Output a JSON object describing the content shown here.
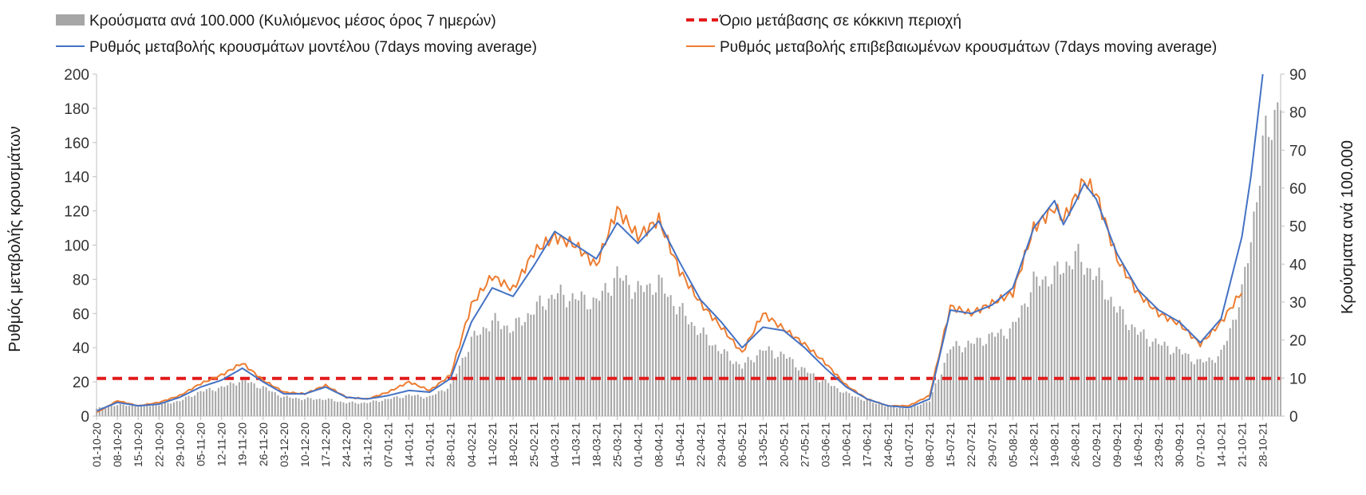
{
  "chart_data": {
    "type": "bar+line",
    "title": "",
    "ylabel": "Ρυθμός μεταβολής κρουσμάτων",
    "y2label": "Κρούσματα ανά 100.000",
    "ylim": [
      0,
      200
    ],
    "y2lim": [
      0,
      90
    ],
    "yticks": [
      0,
      20,
      40,
      60,
      80,
      100,
      120,
      140,
      160,
      180,
      200
    ],
    "y2ticks": [
      0,
      10,
      20,
      30,
      40,
      50,
      60,
      70,
      80,
      90
    ],
    "x_start": "2020-10-01",
    "x_end": "2021-11-03",
    "xtick_labels": [
      "01-10-20",
      "08-10-20",
      "15-10-20",
      "22-10-20",
      "29-10-20",
      "05-11-20",
      "12-11-20",
      "19-11-20",
      "26-11-20",
      "03-12-20",
      "10-12-20",
      "17-12-20",
      "24-12-20",
      "31-12-20",
      "07-01-21",
      "14-01-21",
      "21-01-21",
      "28-01-21",
      "04-02-21",
      "11-02-21",
      "18-02-21",
      "25-02-21",
      "04-03-21",
      "11-03-21",
      "18-03-21",
      "25-03-21",
      "01-04-21",
      "08-04-21",
      "15-04-21",
      "22-04-21",
      "29-04-21",
      "06-05-21",
      "13-05-21",
      "20-05-21",
      "27-05-21",
      "03-06-21",
      "10-06-21",
      "17-06-21",
      "24-06-21",
      "01-07-21",
      "08-07-21",
      "15-07-21",
      "22-07-21",
      "29-07-21",
      "05-08-21",
      "12-08-21",
      "19-08-21",
      "26-08-21",
      "02-09-21",
      "09-09-21",
      "16-09-21",
      "23-09-21",
      "30-09-21",
      "07-10-21",
      "14-10-21",
      "21-10-21",
      "28-10-21"
    ],
    "grid": false,
    "legend_position": "top",
    "series": [
      {
        "name": "Κρούσματα ανά 100.000 (Κυλιόμενος μέσος όρος 7 ημερών)",
        "type": "bar",
        "axis": "right",
        "color": "#a6a6a6",
        "points": [
          [
            "2020-10-01",
            2
          ],
          [
            "2020-10-08",
            3
          ],
          [
            "2020-10-15",
            2.6
          ],
          [
            "2020-10-22",
            3
          ],
          [
            "2020-10-29",
            4
          ],
          [
            "2020-11-05",
            6.5
          ],
          [
            "2020-11-12",
            7.5
          ],
          [
            "2020-11-19",
            9.5
          ],
          [
            "2020-11-26",
            7.5
          ],
          [
            "2020-12-03",
            5
          ],
          [
            "2020-12-10",
            4.5
          ],
          [
            "2020-12-17",
            4.5
          ],
          [
            "2020-12-24",
            3.5
          ],
          [
            "2020-12-31",
            3.5
          ],
          [
            "2021-01-07",
            4.5
          ],
          [
            "2021-01-14",
            5.5
          ],
          [
            "2021-01-21",
            5
          ],
          [
            "2021-01-28",
            8
          ],
          [
            "2021-02-04",
            20
          ],
          [
            "2021-02-11",
            25
          ],
          [
            "2021-02-18",
            23
          ],
          [
            "2021-02-25",
            28
          ],
          [
            "2021-03-04",
            32
          ],
          [
            "2021-03-11",
            31
          ],
          [
            "2021-03-18",
            30
          ],
          [
            "2021-03-25",
            37
          ],
          [
            "2021-04-01",
            33
          ],
          [
            "2021-04-08",
            35
          ],
          [
            "2021-04-15",
            28
          ],
          [
            "2021-04-22",
            22
          ],
          [
            "2021-04-29",
            17
          ],
          [
            "2021-05-06",
            13
          ],
          [
            "2021-05-13",
            17.5
          ],
          [
            "2021-05-20",
            16
          ],
          [
            "2021-05-27",
            12
          ],
          [
            "2021-06-03",
            9
          ],
          [
            "2021-06-10",
            6
          ],
          [
            "2021-06-17",
            4
          ],
          [
            "2021-06-24",
            2.5
          ],
          [
            "2021-07-01",
            2
          ],
          [
            "2021-07-08",
            4
          ],
          [
            "2021-07-15",
            18
          ],
          [
            "2021-07-22",
            19
          ],
          [
            "2021-07-29",
            21
          ],
          [
            "2021-08-05",
            23
          ],
          [
            "2021-08-12",
            35
          ],
          [
            "2021-08-19",
            37
          ],
          [
            "2021-08-26",
            42
          ],
          [
            "2021-09-02",
            37
          ],
          [
            "2021-09-09",
            28
          ],
          [
            "2021-09-16",
            22
          ],
          [
            "2021-09-23",
            19
          ],
          [
            "2021-09-30",
            17
          ],
          [
            "2021-10-07",
            14
          ],
          [
            "2021-10-14",
            16
          ],
          [
            "2021-10-21",
            32
          ],
          [
            "2021-10-24",
            47
          ],
          [
            "2021-10-28",
            70
          ],
          [
            "2021-11-01",
            80
          ],
          [
            "2021-11-03",
            85
          ]
        ]
      },
      {
        "name": "Όριο μετάβασης σε κόκκινη περιοχή",
        "type": "line",
        "style": "dashed",
        "axis": "left",
        "color": "#e31a1c",
        "value": 22
      },
      {
        "name": "Ρυθμός μεταβολής κρουσμάτων μοντέλου (7days moving average)",
        "type": "line",
        "axis": "left",
        "color": "#4472c4",
        "points": [
          [
            "2020-10-01",
            3
          ],
          [
            "2020-10-08",
            8
          ],
          [
            "2020-10-15",
            6
          ],
          [
            "2020-10-22",
            7
          ],
          [
            "2020-10-29",
            11
          ],
          [
            "2020-11-05",
            17
          ],
          [
            "2020-11-12",
            21
          ],
          [
            "2020-11-19",
            28
          ],
          [
            "2020-11-26",
            20
          ],
          [
            "2020-12-03",
            13
          ],
          [
            "2020-12-10",
            13
          ],
          [
            "2020-12-17",
            17
          ],
          [
            "2020-12-24",
            11
          ],
          [
            "2020-12-31",
            10
          ],
          [
            "2021-01-07",
            12
          ],
          [
            "2021-01-14",
            15
          ],
          [
            "2021-01-21",
            14
          ],
          [
            "2021-01-28",
            22
          ],
          [
            "2021-02-04",
            55
          ],
          [
            "2021-02-11",
            75
          ],
          [
            "2021-02-18",
            70
          ],
          [
            "2021-02-25",
            88
          ],
          [
            "2021-03-04",
            108
          ],
          [
            "2021-03-11",
            100
          ],
          [
            "2021-03-18",
            92
          ],
          [
            "2021-03-25",
            113
          ],
          [
            "2021-04-01",
            101
          ],
          [
            "2021-04-08",
            114
          ],
          [
            "2021-04-15",
            90
          ],
          [
            "2021-04-22",
            68
          ],
          [
            "2021-04-29",
            55
          ],
          [
            "2021-05-06",
            40
          ],
          [
            "2021-05-13",
            52
          ],
          [
            "2021-05-20",
            50
          ],
          [
            "2021-05-27",
            40
          ],
          [
            "2021-06-03",
            28
          ],
          [
            "2021-06-10",
            17
          ],
          [
            "2021-06-17",
            10
          ],
          [
            "2021-06-24",
            6
          ],
          [
            "2021-07-01",
            5
          ],
          [
            "2021-07-08",
            10
          ],
          [
            "2021-07-15",
            62
          ],
          [
            "2021-07-22",
            60
          ],
          [
            "2021-07-29",
            65
          ],
          [
            "2021-08-05",
            75
          ],
          [
            "2021-08-12",
            110
          ],
          [
            "2021-08-19",
            126
          ],
          [
            "2021-08-22",
            112
          ],
          [
            "2021-08-26",
            125
          ],
          [
            "2021-08-29",
            136
          ],
          [
            "2021-09-02",
            127
          ],
          [
            "2021-09-09",
            95
          ],
          [
            "2021-09-16",
            74
          ],
          [
            "2021-09-23",
            62
          ],
          [
            "2021-09-30",
            55
          ],
          [
            "2021-10-07",
            43
          ],
          [
            "2021-10-14",
            57
          ],
          [
            "2021-10-21",
            105
          ],
          [
            "2021-10-24",
            140
          ],
          [
            "2021-10-28",
            200
          ]
        ]
      },
      {
        "name": "Ρυθμός μεταβολής επιβεβαιωμένων κρουσμάτων (7days moving average)",
        "type": "line",
        "axis": "left",
        "color": "#ed7d31",
        "points": [
          [
            "2020-10-01",
            2
          ],
          [
            "2020-10-08",
            9
          ],
          [
            "2020-10-15",
            6
          ],
          [
            "2020-10-22",
            8
          ],
          [
            "2020-10-29",
            12
          ],
          [
            "2020-11-05",
            19
          ],
          [
            "2020-11-12",
            24
          ],
          [
            "2020-11-19",
            31
          ],
          [
            "2020-11-26",
            21
          ],
          [
            "2020-12-03",
            14
          ],
          [
            "2020-12-10",
            13
          ],
          [
            "2020-12-17",
            18
          ],
          [
            "2020-12-24",
            11
          ],
          [
            "2020-12-31",
            10
          ],
          [
            "2021-01-07",
            14
          ],
          [
            "2021-01-14",
            20
          ],
          [
            "2021-01-21",
            15
          ],
          [
            "2021-01-28",
            24
          ],
          [
            "2021-02-04",
            65
          ],
          [
            "2021-02-11",
            82
          ],
          [
            "2021-02-18",
            74
          ],
          [
            "2021-02-25",
            96
          ],
          [
            "2021-03-04",
            105
          ],
          [
            "2021-03-11",
            100
          ],
          [
            "2021-03-18",
            88
          ],
          [
            "2021-03-25",
            121
          ],
          [
            "2021-04-01",
            105
          ],
          [
            "2021-04-08",
            115
          ],
          [
            "2021-04-15",
            85
          ],
          [
            "2021-04-22",
            66
          ],
          [
            "2021-04-29",
            52
          ],
          [
            "2021-05-06",
            37
          ],
          [
            "2021-05-13",
            60
          ],
          [
            "2021-05-20",
            51
          ],
          [
            "2021-05-27",
            42
          ],
          [
            "2021-06-03",
            31
          ],
          [
            "2021-06-10",
            18
          ],
          [
            "2021-06-17",
            10
          ],
          [
            "2021-06-24",
            6
          ],
          [
            "2021-07-01",
            6
          ],
          [
            "2021-07-08",
            12
          ],
          [
            "2021-07-15",
            64
          ],
          [
            "2021-07-22",
            60
          ],
          [
            "2021-07-29",
            66
          ],
          [
            "2021-08-05",
            72
          ],
          [
            "2021-08-12",
            110
          ],
          [
            "2021-08-19",
            122
          ],
          [
            "2021-08-22",
            115
          ],
          [
            "2021-08-26",
            128
          ],
          [
            "2021-08-29",
            138
          ],
          [
            "2021-09-02",
            130
          ],
          [
            "2021-09-09",
            92
          ],
          [
            "2021-09-16",
            72
          ],
          [
            "2021-09-23",
            60
          ],
          [
            "2021-09-30",
            54
          ],
          [
            "2021-10-07",
            42
          ],
          [
            "2021-10-14",
            55
          ],
          [
            "2021-10-21",
            73
          ]
        ]
      }
    ]
  }
}
